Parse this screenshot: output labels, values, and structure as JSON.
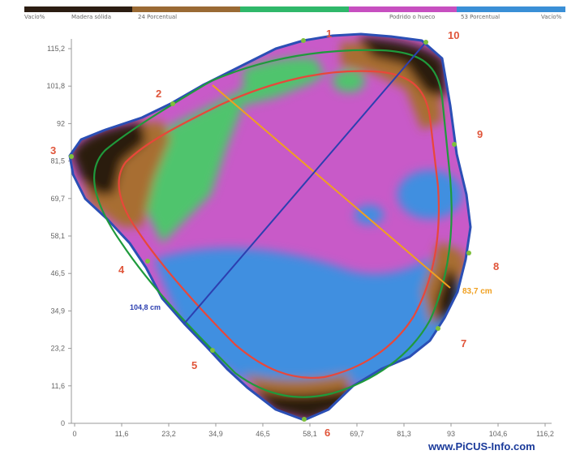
{
  "legend": {
    "segments": [
      {
        "color": "#2b1d12"
      },
      {
        "color": "#9a6a34"
      },
      {
        "color": "#2fb86a"
      },
      {
        "color": "#c74fc0"
      },
      {
        "color": "#3a8fd6"
      }
    ],
    "labels": [
      "Vacío%",
      "Madera sólida",
      "24 Porcentual",
      "Podrido o hueco",
      "53 Porcentual",
      "Vacío%"
    ]
  },
  "y_ticks": [
    "115,2",
    "101,8",
    "92",
    "81,5",
    "69,7",
    "58,1",
    "46,5",
    "34,9",
    "23,2",
    "11,6",
    "0"
  ],
  "x_ticks": [
    "0",
    "11,6",
    "23,2",
    "34,9",
    "46,5",
    "58,1",
    "69,7",
    "81,3",
    "93",
    "104,6",
    "116,2"
  ],
  "sensors": [
    "1",
    "2",
    "3",
    "4",
    "5",
    "6",
    "7",
    "8",
    "9",
    "10"
  ],
  "measurements": {
    "orange_line": "83,7 cm",
    "blue_line": "104,8 cm"
  },
  "watermark": "www.PiCUS-Info.com",
  "colors": {
    "outline": "#2b4fb5",
    "dark": "#2a1a0d",
    "brown": "#a86e32",
    "green": "#4fc46d",
    "magenta": "#c85ac8",
    "blue": "#3f8fe0",
    "sensor_label": "#e0553a",
    "ring_green": "#1f9a3c",
    "ring_red": "#e8473a",
    "orange_line": "#f0a020",
    "blue_line": "#2c3fb0"
  }
}
